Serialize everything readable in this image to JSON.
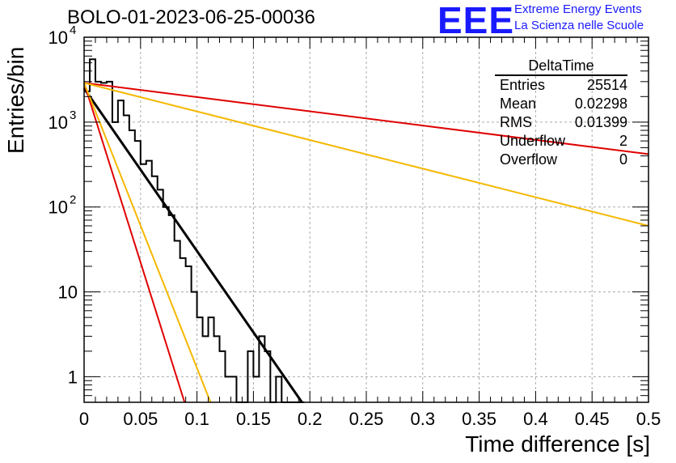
{
  "header": {
    "title": "BOLO-01-2023-06-25-00036",
    "logo": "EEE",
    "logo_line1": "Extreme Energy Events",
    "logo_line2": "La Scienza nelle Scuole"
  },
  "axes": {
    "xlabel": "Time difference [s]",
    "ylabel": "Entries/bin",
    "xlim": [
      0,
      0.5
    ],
    "ylim": [
      0.5,
      10000
    ],
    "yscale": "log",
    "grid": true,
    "xticks": [
      "0",
      "0.05",
      "0.1",
      "0.15",
      "0.2",
      "0.25",
      "0.3",
      "0.35",
      "0.4",
      "0.45",
      "0.5"
    ],
    "yticks": [
      {
        "value": 1,
        "label": "1"
      },
      {
        "value": 10,
        "label": "10"
      },
      {
        "value": 100,
        "label": "10",
        "exp": "2"
      },
      {
        "value": 1000,
        "label": "10",
        "exp": "3"
      },
      {
        "value": 10000,
        "label": "10",
        "exp": "4"
      }
    ]
  },
  "stats": {
    "name": "DeltaTime",
    "rows": [
      {
        "label": "Entries",
        "value": "25514"
      },
      {
        "label": "Mean",
        "value": "0.02298"
      },
      {
        "label": "RMS",
        "value": "0.01399"
      },
      {
        "label": "Underflow",
        "value": "2"
      },
      {
        "label": "Overflow",
        "value": "0"
      }
    ]
  },
  "chart_data": {
    "type": "line",
    "histogram": {
      "bin_width": 0.005,
      "x_start": 0.0,
      "counts": [
        2300,
        5500,
        3000,
        2900,
        3000,
        1000,
        1800,
        1200,
        800,
        600,
        320,
        350,
        230,
        160,
        100,
        80,
        40,
        25,
        20,
        10,
        5,
        3,
        5,
        3,
        2,
        1,
        1,
        0,
        0,
        2,
        1,
        3,
        2,
        0,
        1,
        0,
        0,
        0,
        0
      ]
    },
    "series": [
      {
        "color": "#000000",
        "x": [
          0.0,
          0.193
        ],
        "y": [
          2500,
          0.5
        ]
      },
      {
        "color": "#e00000",
        "x": [
          0.0,
          0.5
        ],
        "y": [
          2900,
          420
        ]
      },
      {
        "color": "#f5b800",
        "x": [
          0.0,
          0.5
        ],
        "y": [
          2900,
          60
        ]
      },
      {
        "color": "#e00000",
        "x": [
          0.0,
          0.089
        ],
        "y": [
          2900,
          0.5
        ]
      },
      {
        "color": "#f5b800",
        "x": [
          0.0,
          0.112
        ],
        "y": [
          2900,
          0.5
        ]
      }
    ]
  }
}
